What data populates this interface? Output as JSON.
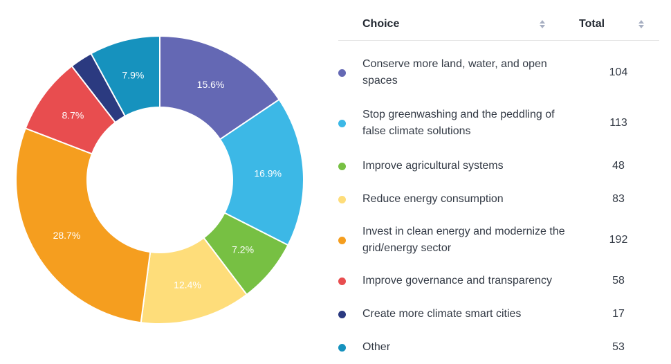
{
  "chart_data": {
    "type": "pie",
    "variant": "donut",
    "series": [
      {
        "label": "Conserve more land, water, and open spaces",
        "value": 104,
        "percent_label": "15.6%",
        "color": "#6468B4"
      },
      {
        "label": "Stop greenwashing and the peddling of false climate solutions",
        "value": 113,
        "percent_label": "16.9%",
        "color": "#3CB8E6"
      },
      {
        "label": "Improve agricultural systems",
        "value": 48,
        "percent_label": "7.2%",
        "color": "#77C043"
      },
      {
        "label": "Reduce energy consumption",
        "value": 83,
        "percent_label": "12.4%",
        "color": "#FEDD7A"
      },
      {
        "label": "Invest in clean energy and modernize the grid/energy sector",
        "value": 192,
        "percent_label": "28.7%",
        "color": "#F59E1F"
      },
      {
        "label": "Improve governance and transparency",
        "value": 58,
        "percent_label": "8.7%",
        "color": "#E84D4F"
      },
      {
        "label": "Create more climate smart cities",
        "value": 17,
        "percent_label": "",
        "color": "#2B3A80"
      },
      {
        "label": "Other",
        "value": 53,
        "percent_label": "7.9%",
        "color": "#1692BE"
      }
    ]
  },
  "table": {
    "header": {
      "choice": "Choice",
      "total": "Total"
    },
    "rows": [
      {
        "choice_lines": [
          "Conserve more land, water, and open",
          "spaces"
        ],
        "total": "104"
      },
      {
        "choice_lines": [
          "Stop greenwashing and the peddling of",
          "false climate solutions"
        ],
        "total": "113"
      },
      {
        "choice_lines": [
          "Improve agricultural systems"
        ],
        "total": "48"
      },
      {
        "choice_lines": [
          "Reduce energy consumption"
        ],
        "total": "83"
      },
      {
        "choice_lines": [
          "Invest in clean energy and modernize the",
          "grid/energy sector"
        ],
        "total": "192"
      },
      {
        "choice_lines": [
          "Improve governance and transparency"
        ],
        "total": "58"
      },
      {
        "choice_lines": [
          "Create more climate smart cities"
        ],
        "total": "17"
      },
      {
        "choice_lines": [
          "Other"
        ],
        "total": "53"
      }
    ]
  }
}
